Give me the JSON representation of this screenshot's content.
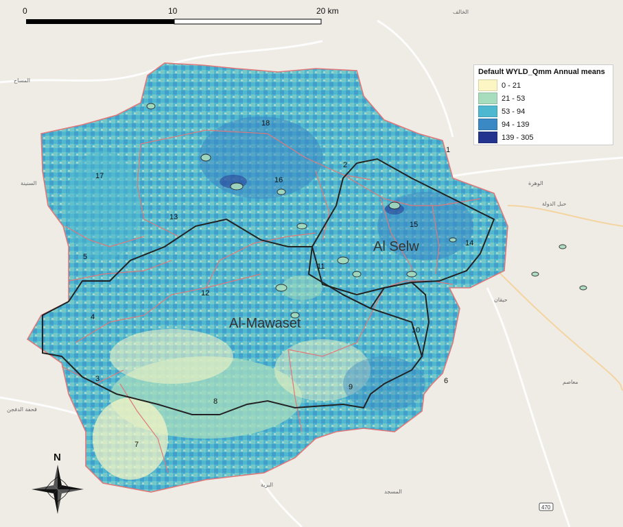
{
  "scalebar": {
    "labels": [
      "0",
      "10",
      "20 km"
    ]
  },
  "legend": {
    "title": "Default WYLD_Qmm Annual means",
    "items": [
      {
        "label": "0 - 21",
        "color": "#fbf6c4"
      },
      {
        "label": "21 - 53",
        "color": "#a7dcbd"
      },
      {
        "label": "53 - 94",
        "color": "#4db8cf"
      },
      {
        "label": "94 - 139",
        "color": "#3a88c4"
      },
      {
        "label": "139 - 305",
        "color": "#23348f"
      }
    ]
  },
  "district_labels": [
    "Al Selw",
    "Al-Mawaset"
  ],
  "subbasin_labels": [
    "1",
    "2",
    "3",
    "4",
    "5",
    "6",
    "7",
    "8",
    "9",
    "10",
    "11",
    "12",
    "13",
    "14",
    "15",
    "16",
    "17",
    "18"
  ],
  "north_arrow": {
    "label": "N",
    "icon": "north-arrow-icon"
  },
  "road_shield": "470",
  "colors": {
    "subbasin_border": "#e0787a",
    "district_border": "#222222",
    "basemap": "#efece6"
  }
}
